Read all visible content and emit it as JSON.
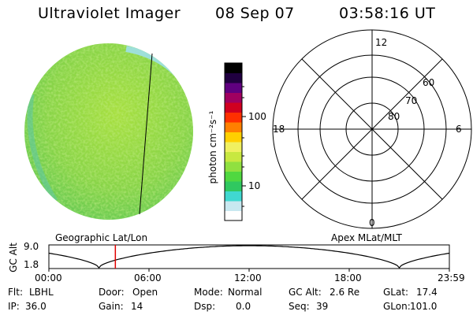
{
  "header": {
    "title": "Ultraviolet Imager",
    "date": "08 Sep 07",
    "time": "03:58:16 UT"
  },
  "colorbar": {
    "label": "photon cm⁻²s⁻¹",
    "ticks": [
      "100",
      "10"
    ],
    "colors": [
      "#ffffff",
      "#c8e8f0",
      "#40d8d0",
      "#30c860",
      "#50d840",
      "#90e040",
      "#c8e840",
      "#f0f060",
      "#ffd000",
      "#ff8000",
      "#ff3000",
      "#d00020",
      "#a00060",
      "#600080",
      "#200040",
      "#000000"
    ]
  },
  "polar_grid": {
    "mlt_labels": {
      "top": "12",
      "bottom": "0",
      "left": "18",
      "right": "6"
    },
    "lat_labels": [
      "60",
      "70",
      "80"
    ]
  },
  "orbit": {
    "ylabel": "GC Alt",
    "yticks": [
      "9.0",
      "1.8"
    ],
    "left_title": "Geographic Lat/Lon",
    "right_title": "Apex MLat/MLT",
    "xticks": [
      "00:00",
      "06:00",
      "12:00",
      "18:00",
      "23:59"
    ],
    "current_time_fraction": 0.166
  },
  "status": {
    "row1": [
      {
        "key": "Flt:",
        "value": "LBHL"
      },
      {
        "key": "Door:",
        "value": "Open"
      },
      {
        "key": "Mode:",
        "value": "Normal"
      },
      {
        "key": "GC Alt:",
        "value": "2.6 Re"
      },
      {
        "key": "GLat:",
        "value": "17.4"
      }
    ],
    "row2": [
      {
        "key": "IP:",
        "value": "36.0"
      },
      {
        "key": "Gain:",
        "value": "14"
      },
      {
        "key": "Dsp:",
        "value": "0.0"
      },
      {
        "key": "Seq:",
        "value": "39"
      },
      {
        "key": "GLon:",
        "value": "101.0"
      }
    ]
  },
  "accent": {
    "marker": "#e00000",
    "image_base": "#8ed850"
  }
}
